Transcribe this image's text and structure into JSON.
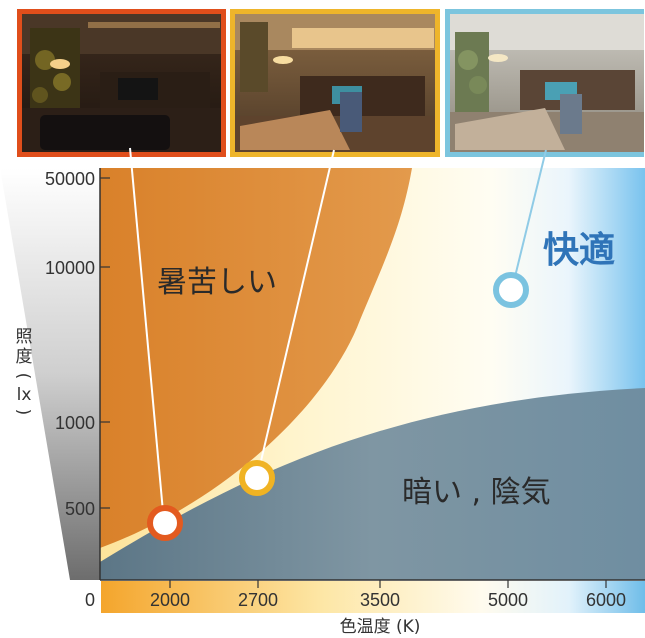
{
  "chart_data": {
    "type": "diagram",
    "title": "",
    "xlabel": "色温度 (K)",
    "ylabel_chars": [
      "照",
      "度",
      "(",
      "lx",
      ")"
    ],
    "x_ticks": [
      "2000",
      "2700",
      "3500",
      "5000",
      "6000"
    ],
    "y_ticks": [
      "50000",
      "10000",
      "1000",
      "500"
    ],
    "origin_label": "0",
    "regions": {
      "hot": "暑苦しい",
      "comfortable": "快適",
      "dark": "暗い , 陰気"
    },
    "points": [
      {
        "x": 2000,
        "y": 430,
        "color": "#e35a1f",
        "photo": "warm-dim-room"
      },
      {
        "x": 2700,
        "y": 640,
        "color": "#f0b323",
        "photo": "warm-room"
      },
      {
        "x": 5000,
        "y": 7500,
        "color": "#7bc3e0",
        "photo": "cool-room"
      }
    ],
    "colors": {
      "hot_region": "#da8a33",
      "comfort_warm": "#fff3c9",
      "comfort_cool": "#7ec6ef",
      "dark_region": "#6f8c9d"
    }
  }
}
